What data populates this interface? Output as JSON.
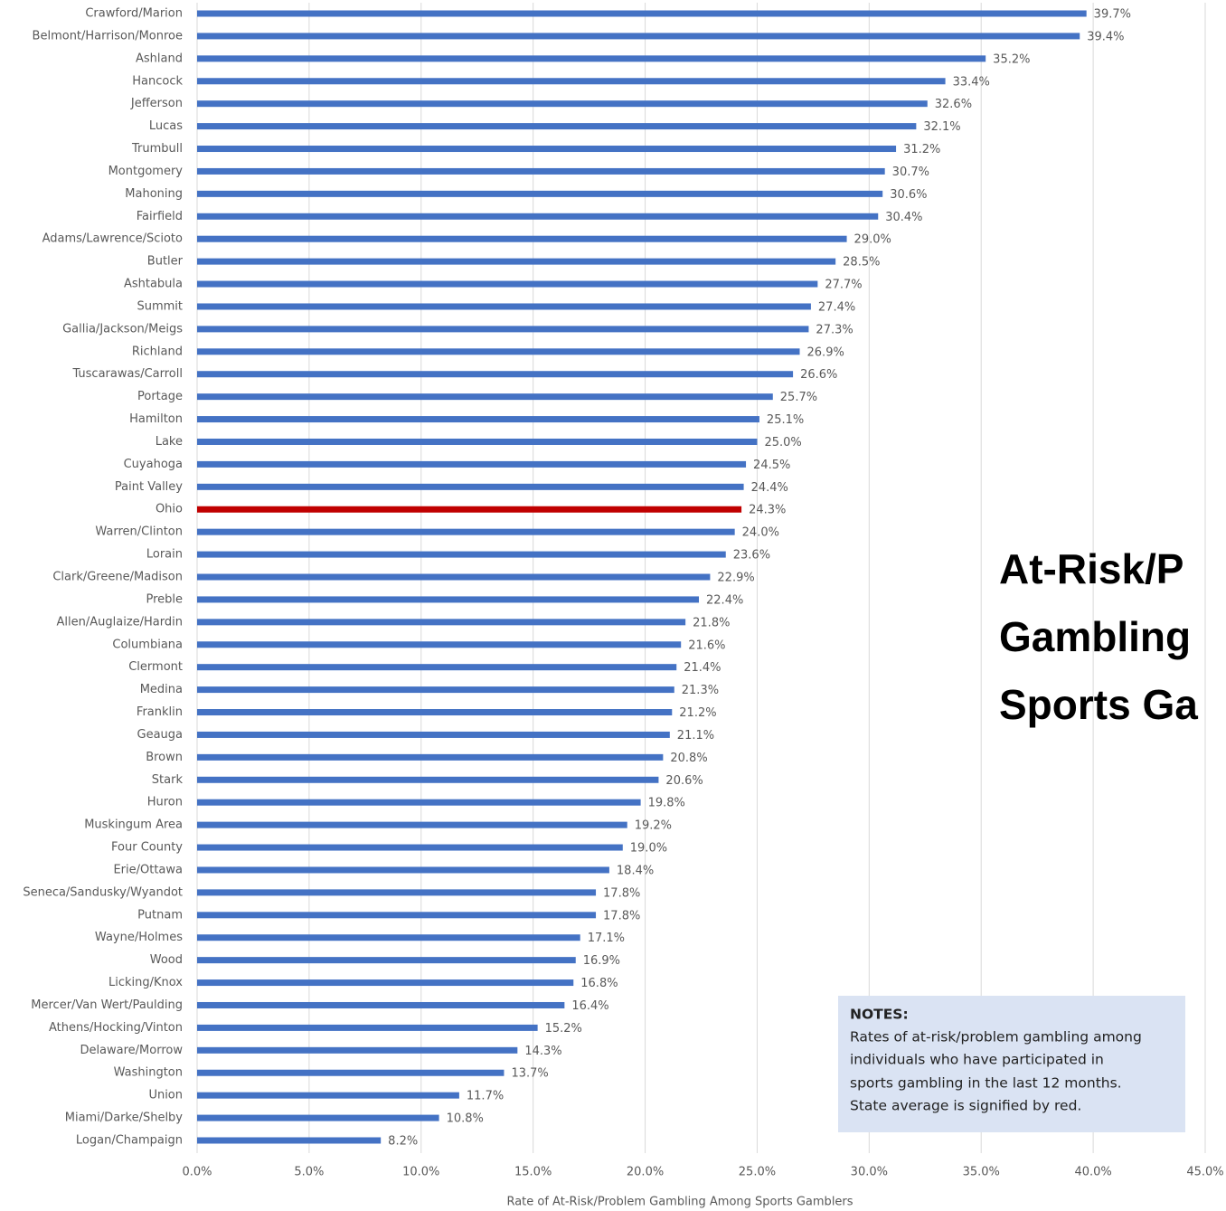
{
  "chart_data": {
    "type": "barh",
    "title": [
      "At-Risk/P",
      "Gambling",
      "Sports Ga"
    ],
    "x_label": "Rate of At-Risk/Problem Gambling Among Sports Gamblers",
    "categories": [
      "Crawford/Marion",
      "Belmont/Harrison/Monroe",
      "Ashland",
      "Hancock",
      "Jefferson",
      "Lucas",
      "Trumbull",
      "Montgomery",
      "Mahoning",
      "Fairfield",
      "Adams/Lawrence/Scioto",
      "Butler",
      "Ashtabula",
      "Summit",
      "Gallia/Jackson/Meigs",
      "Richland",
      "Tuscarawas/Carroll",
      "Portage",
      "Hamilton",
      "Lake",
      "Cuyahoga",
      "Paint Valley",
      "Ohio",
      "Warren/Clinton",
      "Lorain",
      "Clark/Greene/Madison",
      "Preble",
      "Allen/Auglaize/Hardin",
      "Columbiana",
      "Clermont",
      "Medina",
      "Franklin",
      "Geauga",
      "Brown",
      "Stark",
      "Huron",
      "Muskingum Area",
      "Four County",
      "Erie/Ottawa",
      "Seneca/Sandusky/Wyandot",
      "Putnam",
      "Wayne/Holmes",
      "Wood",
      "Licking/Knox",
      "Mercer/Van Wert/Paulding",
      "Athens/Hocking/Vinton",
      "Delaware/Morrow",
      "Washington",
      "Union",
      "Miami/Darke/Shelby",
      "Logan/Champaign"
    ],
    "values": [
      39.7,
      39.4,
      35.2,
      33.4,
      32.6,
      32.1,
      31.2,
      30.7,
      30.6,
      30.4,
      29.0,
      28.5,
      27.7,
      27.4,
      27.3,
      26.9,
      26.6,
      25.7,
      25.1,
      25.0,
      24.5,
      24.4,
      24.3,
      24.0,
      23.6,
      22.9,
      22.4,
      21.8,
      21.6,
      21.4,
      21.3,
      21.2,
      21.1,
      20.8,
      20.6,
      19.8,
      19.2,
      19.0,
      18.4,
      17.8,
      17.8,
      17.1,
      16.9,
      16.8,
      16.4,
      15.2,
      14.3,
      13.7,
      11.7,
      10.8,
      8.2
    ],
    "value_labels": [
      "39.7%",
      "39.4%",
      "35.2%",
      "33.4%",
      "32.6%",
      "32.1%",
      "31.2%",
      "30.7%",
      "30.6%",
      "30.4%",
      "29.0%",
      "28.5%",
      "27.7%",
      "27.4%",
      "27.3%",
      "26.9%",
      "26.6%",
      "25.7%",
      "25.1%",
      "25.0%",
      "24.5%",
      "24.4%",
      "24.3%",
      "24.0%",
      "23.6%",
      "22.9%",
      "22.4%",
      "21.8%",
      "21.6%",
      "21.4%",
      "21.3%",
      "21.2%",
      "21.1%",
      "20.8%",
      "20.6%",
      "19.8%",
      "19.2%",
      "19.0%",
      "18.4%",
      "17.8%",
      "17.8%",
      "17.1%",
      "16.9%",
      "16.8%",
      "16.4%",
      "15.2%",
      "14.3%",
      "13.7%",
      "11.7%",
      "10.8%",
      "8.2%"
    ],
    "colors": [
      "#4472c4",
      "#4472c4",
      "#4472c4",
      "#4472c4",
      "#4472c4",
      "#4472c4",
      "#4472c4",
      "#4472c4",
      "#4472c4",
      "#4472c4",
      "#4472c4",
      "#4472c4",
      "#4472c4",
      "#4472c4",
      "#4472c4",
      "#4472c4",
      "#4472c4",
      "#4472c4",
      "#4472c4",
      "#4472c4",
      "#4472c4",
      "#4472c4",
      "#c00000",
      "#4472c4",
      "#4472c4",
      "#4472c4",
      "#4472c4",
      "#4472c4",
      "#4472c4",
      "#4472c4",
      "#4472c4",
      "#4472c4",
      "#4472c4",
      "#4472c4",
      "#4472c4",
      "#4472c4",
      "#4472c4",
      "#4472c4",
      "#4472c4",
      "#4472c4",
      "#4472c4",
      "#4472c4",
      "#4472c4",
      "#4472c4",
      "#4472c4",
      "#4472c4",
      "#4472c4",
      "#4472c4",
      "#4472c4",
      "#4472c4",
      "#4472c4"
    ],
    "xlim": [
      0,
      45
    ],
    "xticks": [
      {
        "value": 0,
        "label": "0.0%"
      },
      {
        "value": 5,
        "label": "5.0%"
      },
      {
        "value": 10,
        "label": "10.0%"
      },
      {
        "value": 15,
        "label": "15.0%"
      },
      {
        "value": 20,
        "label": "20.0%"
      },
      {
        "value": 25,
        "label": "25.0%"
      },
      {
        "value": 30,
        "label": "30.0%"
      },
      {
        "value": 35,
        "label": "35.0%"
      },
      {
        "value": 40,
        "label": "40.0%"
      },
      {
        "value": 45,
        "label": "45.0%"
      }
    ],
    "grid": true,
    "notes": {
      "heading": "NOTES:",
      "lines": [
        "Rates of at-risk/problem gambling among",
        "individuals who have participated in",
        "sports gambling in the last 12 months.",
        "State average is signified by red."
      ]
    }
  }
}
